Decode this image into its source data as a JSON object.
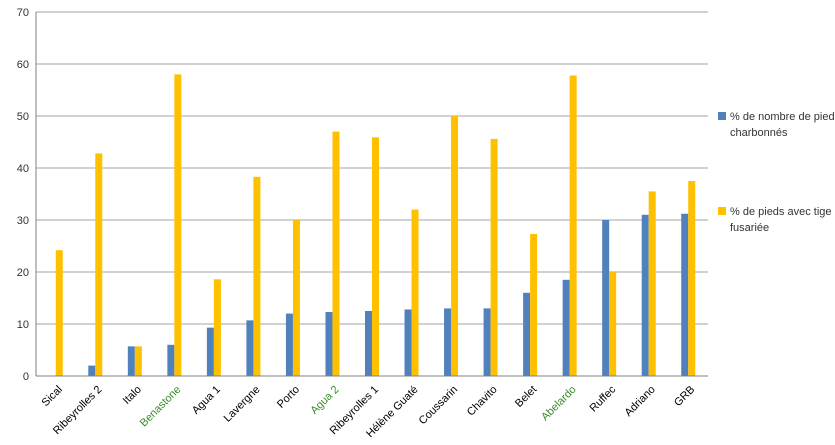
{
  "chart_data": {
    "type": "bar",
    "categories": [
      "Sical",
      "Ribeyrolles 2",
      "Italo",
      "Benastone",
      "Agua 1",
      "Lavergne",
      "Porto",
      "Agua 2",
      "Ribeyrolles 1",
      "Hélène Guaté",
      "Coussarin",
      "Chavito",
      "Belet",
      "Abelardo",
      "Ruffec",
      "Adriano",
      "GRB"
    ],
    "highlighted_categories": [
      "Benastone",
      "Agua 2",
      "Abelardo"
    ],
    "series": [
      {
        "name": "% de nombre de pieds charbonnés",
        "color": "#4F81BD",
        "values": [
          0,
          2,
          5.7,
          6,
          9.3,
          10.7,
          12,
          12.3,
          12.5,
          12.8,
          13,
          13,
          16,
          18.5,
          30,
          31,
          31.2
        ]
      },
      {
        "name": "% de pieds avec tige fusariée",
        "color": "#FFC000",
        "values": [
          24.2,
          42.8,
          5.7,
          58,
          18.6,
          38.3,
          30,
          47,
          45.9,
          32,
          50,
          45.6,
          27.3,
          57.8,
          20,
          35.5,
          37.5
        ]
      }
    ],
    "ylim": [
      0,
      70
    ],
    "yticks": [
      "0",
      "10",
      "20",
      "30",
      "40",
      "50",
      "60",
      "70"
    ],
    "grid": true,
    "legend_position": "right",
    "highlight_color": "#3A8C2A",
    "label_color": "#000000",
    "title": "",
    "xlabel": "",
    "ylabel": ""
  }
}
